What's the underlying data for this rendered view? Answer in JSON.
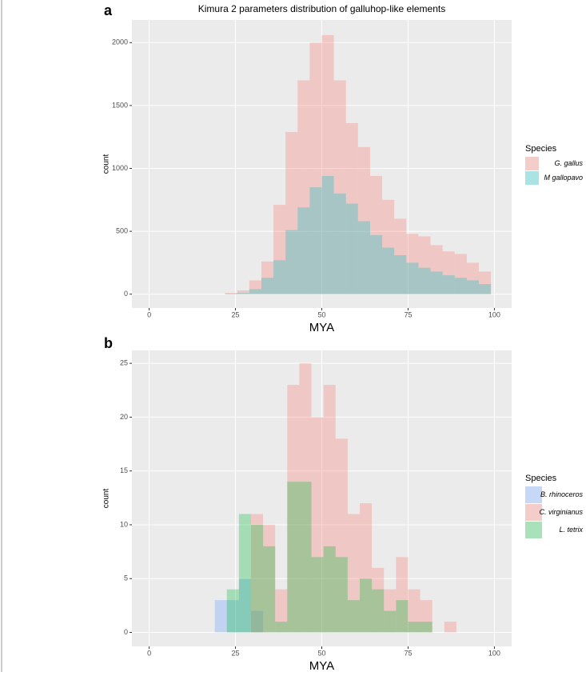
{
  "chart_data": [
    {
      "type": "histogram",
      "panel_label": "a",
      "title": "Kimura 2 parameters distribution of galluhop-like elements",
      "x_label": "MYA",
      "y_label": "count",
      "legend_title": "Species",
      "legend": "right",
      "grid": true,
      "bins": [
        22,
        25.5,
        29,
        32.5,
        36,
        39.5,
        43,
        46.5,
        50,
        53.5,
        57,
        60.5,
        64,
        67.5,
        71,
        74.5,
        78,
        81.5,
        85,
        88.5,
        92,
        95.5,
        99
      ],
      "series": [
        {
          "name": "G. gallus",
          "color": "#F8766D",
          "values": [
            10,
            30,
            110,
            260,
            710,
            1290,
            1700,
            2000,
            2060,
            1700,
            1360,
            1170,
            940,
            750,
            600,
            480,
            460,
            390,
            340,
            320,
            250,
            180
          ]
        },
        {
          "name": "M gallopavo",
          "color": "#00BFC4",
          "values": [
            5,
            10,
            40,
            130,
            270,
            510,
            690,
            850,
            940,
            800,
            720,
            580,
            470,
            370,
            310,
            250,
            210,
            180,
            150,
            130,
            110,
            80
          ]
        }
      ],
      "xlim": [
        -5,
        105
      ],
      "ylim": [
        -110,
        2180
      ],
      "xticks": [
        0,
        25,
        50,
        75,
        100
      ],
      "yticks": [
        0,
        500,
        1000,
        1500,
        2000
      ]
    },
    {
      "type": "histogram",
      "panel_label": "b",
      "x_label": "MYA",
      "y_label": "count",
      "legend_title": "Species",
      "legend": "right",
      "grid": true,
      "bins": [
        19,
        22.5,
        26,
        29.5,
        33,
        36.5,
        40,
        43.5,
        47,
        50.5,
        54,
        57.5,
        61,
        64.5,
        68,
        71.5,
        75,
        78.5,
        82,
        85.5,
        89
      ],
      "series": [
        {
          "name": "B. rhinoceros",
          "color": "#619CFF",
          "values": [
            3,
            3,
            5,
            2,
            0,
            0,
            0,
            0,
            0,
            0,
            0,
            0,
            0,
            0,
            0,
            0,
            0,
            0,
            0,
            0
          ]
        },
        {
          "name": "C. virginianus",
          "color": "#F8766D",
          "values": [
            0,
            0,
            0,
            11,
            10,
            4,
            23,
            25,
            20,
            23,
            18,
            11,
            12,
            6,
            4,
            7,
            4,
            3,
            0,
            1
          ]
        },
        {
          "name": "L. tetrix",
          "color": "#00BA38",
          "values": [
            0,
            4,
            11,
            10,
            8,
            1,
            14,
            14,
            7,
            8,
            7,
            3,
            5,
            4,
            2,
            3,
            1,
            1,
            0,
            0
          ]
        }
      ],
      "xlim": [
        -5,
        105
      ],
      "ylim": [
        -1.3,
        26.2
      ],
      "xticks": [
        0,
        25,
        50,
        75,
        100
      ],
      "yticks": [
        0,
        5,
        10,
        15,
        20,
        25
      ]
    }
  ]
}
